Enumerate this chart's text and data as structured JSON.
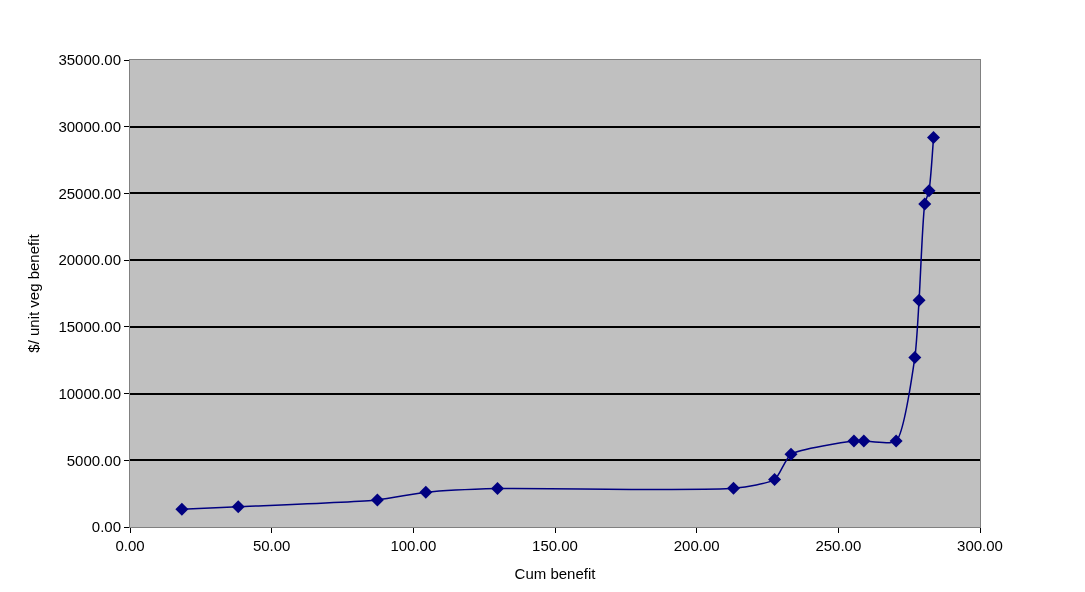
{
  "chart_data": {
    "type": "line",
    "xlabel": "Cum benefit",
    "ylabel": "$/ unit veg benefit",
    "x": [
      18.3,
      38.2,
      87.3,
      104.4,
      129.7,
      213.0,
      227.5,
      233.3,
      255.5,
      259.0,
      270.4,
      277.0,
      278.5,
      280.5,
      282.0,
      283.6
    ],
    "series": [
      {
        "color": "#000080",
        "values": [
          1330,
          1520,
          2030,
          2600,
          2880,
          2900,
          3560,
          5450,
          6440,
          6440,
          6440,
          12700,
          17000,
          24200,
          25200,
          29200
        ]
      }
    ],
    "xlim": [
      0,
      300
    ],
    "xticks": [
      {
        "value": 0,
        "label": "0.00"
      },
      {
        "value": 50,
        "label": "50.00"
      },
      {
        "value": 100,
        "label": "100.00"
      },
      {
        "value": 150,
        "label": "150.00"
      },
      {
        "value": 200,
        "label": "200.00"
      },
      {
        "value": 250,
        "label": "250.00"
      },
      {
        "value": 300,
        "label": "300.00"
      }
    ],
    "ylim": [
      0,
      35000
    ],
    "yticks": [
      {
        "value": 0,
        "label": "0.00"
      },
      {
        "value": 5000,
        "label": "5000.00"
      },
      {
        "value": 10000,
        "label": "10000.00"
      },
      {
        "value": 15000,
        "label": "15000.00"
      },
      {
        "value": 20000,
        "label": "20000.00"
      },
      {
        "value": 25000,
        "label": "25000.00"
      },
      {
        "value": 30000,
        "label": "30000.00"
      },
      {
        "value": 35000,
        "label": "35000.00"
      }
    ],
    "grid": "y",
    "marker": "diamond",
    "line_style": "solid",
    "legend": false
  }
}
